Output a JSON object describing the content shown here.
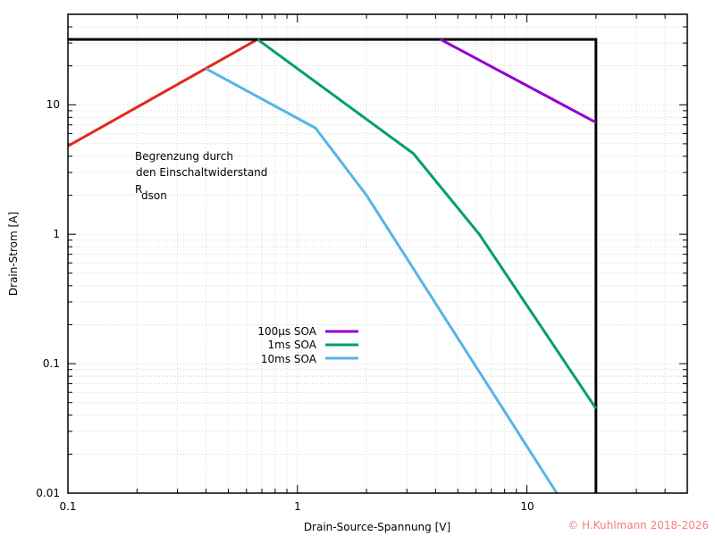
{
  "chart_data": {
    "type": "line",
    "title": "",
    "xlabel": "Drain-Source-Spannung [V]",
    "ylabel": "Drain-Strom [A]",
    "xscale": "log",
    "yscale": "log",
    "xlim": [
      0.1,
      50
    ],
    "ylim": [
      0.01,
      50
    ],
    "x_ticks": [
      "0.1",
      "1",
      "10"
    ],
    "y_ticks": [
      "0.01",
      "0.1",
      "1",
      "10"
    ],
    "grid": true,
    "legend_position": "center-left (inside plot)",
    "series": [
      {
        "name": "Rdson limit",
        "color": "#e0291c",
        "in_legend": false,
        "points": [
          [
            0.1,
            4.8
          ],
          [
            0.67,
            32
          ]
        ]
      },
      {
        "name": "Max current / voltage limit",
        "color": "#000000",
        "in_legend": false,
        "points": [
          [
            0.1,
            32
          ],
          [
            20,
            32
          ],
          [
            20,
            0.01
          ]
        ]
      },
      {
        "name": "100µs SOA",
        "color": "#9400d3",
        "points": [
          [
            4.2,
            32
          ],
          [
            20,
            7.3
          ]
        ]
      },
      {
        "name": "1ms SOA",
        "color": "#009e73",
        "points": [
          [
            0.67,
            32
          ],
          [
            3.2,
            4.2
          ],
          [
            6.2,
            1.0
          ],
          [
            20,
            0.045
          ]
        ]
      },
      {
        "name": "10ms SOA",
        "color": "#56b4e9",
        "points": [
          [
            0.4,
            19
          ],
          [
            1.2,
            6.6
          ],
          [
            2.0,
            2.0
          ],
          [
            13.5,
            0.01
          ]
        ]
      }
    ],
    "annotations": [
      {
        "text_lines": [
          "Begrenzung durch",
          "den Einschaltwiderstand"
        ],
        "symbol": "R",
        "subscript": "dson"
      }
    ]
  },
  "legend": [
    {
      "label": "100µs SOA",
      "color": "#9400d3"
    },
    {
      "label": "1ms SOA",
      "color": "#009e73"
    },
    {
      "label": "10ms SOA",
      "color": "#56b4e9"
    }
  ],
  "annotation": {
    "line1": "Begrenzung durch",
    "line2": "den Einschaltwiderstand",
    "symbol": "R",
    "subscript": "dson"
  },
  "axes": {
    "xlabel": "Drain-Source-Spannung [V]",
    "ylabel": "Drain-Strom [A]",
    "x_tick_labels": [
      "0.1",
      "1",
      "10"
    ],
    "y_tick_labels": [
      "0.01",
      "0.1",
      "1",
      "10"
    ]
  },
  "copyright": "© H.Kuhlmann 2018-2026"
}
